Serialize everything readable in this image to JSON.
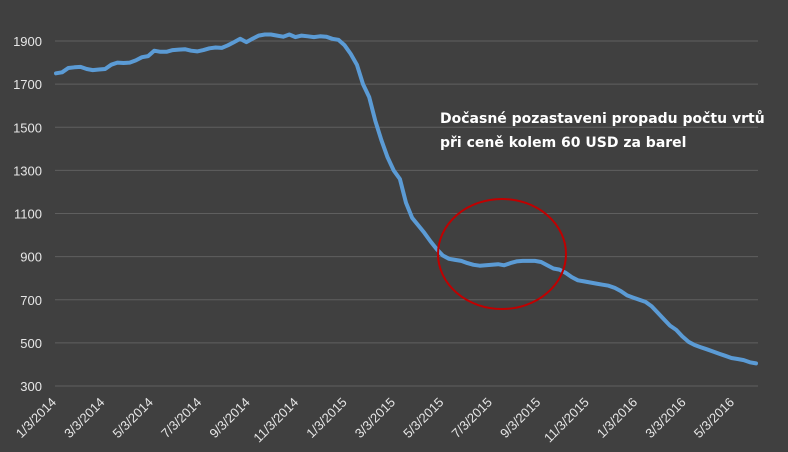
{
  "chart_data": {
    "type": "line",
    "title": "",
    "xlabel": "",
    "ylabel": "",
    "ylim": [
      300,
      1900
    ],
    "yticks": [
      300,
      500,
      700,
      900,
      1100,
      1300,
      1500,
      1700,
      1900
    ],
    "xticks": [
      "1/3/2014",
      "3/3/2014",
      "5/3/2014",
      "7/3/2014",
      "9/3/2014",
      "11/3/2014",
      "1/3/2015",
      "3/3/2015",
      "5/3/2015",
      "7/3/2015",
      "9/3/2015",
      "11/3/2015",
      "1/3/2016",
      "3/3/2016",
      "5/3/2016"
    ],
    "grid": "horizontal",
    "line_color": "#5b9bd5",
    "annotation": {
      "lines": [
        "Dočasné pozastaveni propadu počtu vrtů",
        "při ceně kolem 60 USD za barel"
      ],
      "color": "#ffffff",
      "circle_color": "#c00000"
    },
    "series": [
      {
        "values": [
          1750,
          1755,
          1775,
          1778,
          1780,
          1770,
          1765,
          1768,
          1770,
          1790,
          1800,
          1798,
          1800,
          1810,
          1825,
          1830,
          1855,
          1850,
          1850,
          1858,
          1860,
          1862,
          1855,
          1852,
          1858,
          1866,
          1870,
          1868,
          1880,
          1895,
          1910,
          1895,
          1910,
          1925,
          1930,
          1930,
          1925,
          1920,
          1930,
          1918,
          1925,
          1922,
          1918,
          1922,
          1920,
          1910,
          1905,
          1880,
          1840,
          1790,
          1700,
          1640,
          1530,
          1440,
          1360,
          1300,
          1260,
          1150,
          1080,
          1045,
          1010,
          970,
          935,
          905,
          890,
          885,
          880,
          870,
          862,
          858,
          860,
          862,
          865,
          860,
          870,
          878,
          880,
          880,
          880,
          875,
          860,
          845,
          840,
          825,
          805,
          790,
          785,
          780,
          775,
          770,
          765,
          755,
          740,
          720,
          710,
          700,
          690,
          670,
          640,
          610,
          580,
          560,
          530,
          505,
          490,
          480,
          470,
          460,
          450,
          440,
          430,
          425,
          420,
          410,
          405
        ]
      }
    ]
  }
}
